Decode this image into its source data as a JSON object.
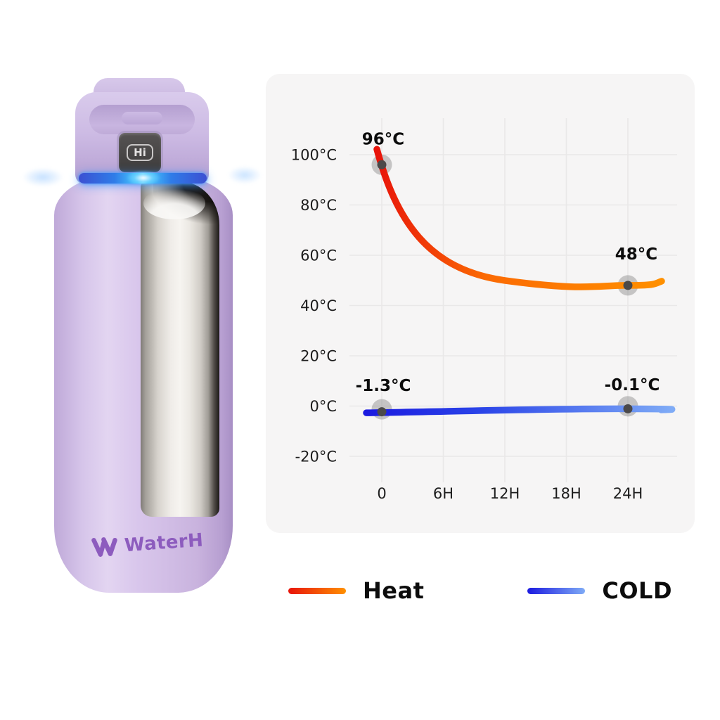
{
  "bottle": {
    "screen_text": "Hi",
    "brand": "WaterH"
  },
  "chart_data": {
    "type": "line",
    "title": "",
    "xlabel": "",
    "ylabel": "",
    "x_ticks": [
      0,
      6,
      12,
      18,
      24
    ],
    "x_tick_labels": [
      "0",
      "6H",
      "12H",
      "18H",
      "24H"
    ],
    "y_ticks": [
      -20,
      0,
      20,
      40,
      60,
      80,
      100
    ],
    "y_tick_labels": [
      "-20°C",
      "0°C",
      "20°C",
      "40°C",
      "60°C",
      "80°C",
      "100°C"
    ],
    "xlim": [
      -1.5,
      25.5
    ],
    "ylim": [
      -30,
      110
    ],
    "grid": true,
    "legend_position": "bottom",
    "series": [
      {
        "name": "Heat",
        "points": [
          {
            "x": 0,
            "y": 96,
            "label": "96°C"
          },
          {
            "x": 24,
            "y": 48,
            "label": "48°C"
          }
        ]
      },
      {
        "name": "COLD",
        "points": [
          {
            "x": 0,
            "y": -1.3,
            "label": "-1.3°C"
          },
          {
            "x": 24,
            "y": -0.1,
            "label": "-0.1°C"
          }
        ]
      }
    ]
  },
  "legend": {
    "items": [
      {
        "label": "Heat"
      },
      {
        "label": "COLD"
      }
    ]
  },
  "colors": {
    "panel_bg": "#f6f5f5",
    "grid_line": "#e9e8e8",
    "axis_text": "#1d1d1d",
    "point_label_text": "#0c0c0c",
    "point_outer": "rgba(118,115,115,0.38)",
    "point_inner": "#4b4949",
    "heat_start": "#e8140a",
    "heat_end": "#ff9000",
    "cold_start": "#1b1ae0",
    "cold_end": "#7fabf6",
    "brand_purple": "#8d5cbe",
    "glow_blue": "#49c9ff"
  }
}
